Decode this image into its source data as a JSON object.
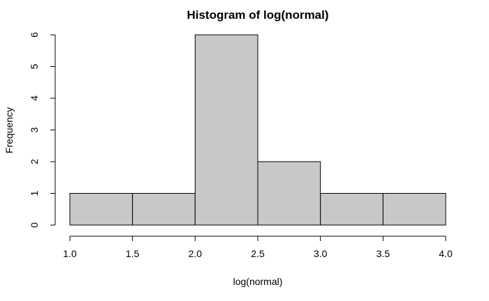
{
  "chart_data": {
    "type": "bar",
    "subtype": "histogram",
    "title": "Histogram of log(normal)",
    "xlabel": "log(normal)",
    "ylabel": "Frequency",
    "bins": [
      {
        "x0": 1.0,
        "x1": 1.5,
        "count": 1
      },
      {
        "x0": 1.5,
        "x1": 2.0,
        "count": 1
      },
      {
        "x0": 2.0,
        "x1": 2.5,
        "count": 6
      },
      {
        "x0": 2.5,
        "x1": 3.0,
        "count": 2
      },
      {
        "x0": 3.0,
        "x1": 3.5,
        "count": 1
      },
      {
        "x0": 3.5,
        "x1": 4.0,
        "count": 1
      }
    ],
    "x_ticks": [
      "1.0",
      "1.5",
      "2.0",
      "2.5",
      "3.0",
      "3.5",
      "4.0"
    ],
    "y_ticks": [
      "0",
      "1",
      "2",
      "3",
      "4",
      "5",
      "6"
    ],
    "xlim": [
      1.0,
      4.0
    ],
    "ylim": [
      0,
      6
    ],
    "grid": false,
    "bar_fill": "#c8c8c8",
    "bar_stroke": "#000000"
  }
}
